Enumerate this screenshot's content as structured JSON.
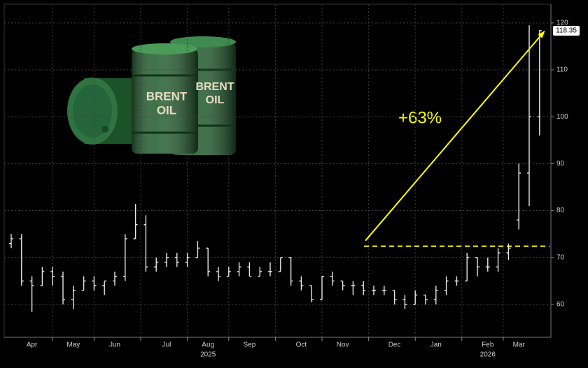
{
  "chart_data": {
    "type": "ohlc",
    "categories": [
      null,
      null,
      "Apr",
      null,
      null,
      null,
      "May",
      null,
      null,
      null,
      "Jun",
      null,
      null,
      null,
      null,
      "Jul",
      null,
      null,
      null,
      "Aug",
      null,
      null,
      null,
      "Sep",
      null,
      null,
      null,
      null,
      "Oct",
      null,
      null,
      null,
      "Nov",
      null,
      null,
      null,
      null,
      "Dec",
      null,
      null,
      null,
      "Jan",
      null,
      null,
      null,
      null,
      "Feb",
      null,
      null,
      "Mar",
      null,
      null
    ],
    "year_categories": [
      null,
      null,
      null,
      null,
      null,
      null,
      null,
      null,
      null,
      null,
      null,
      null,
      null,
      null,
      null,
      null,
      null,
      null,
      null,
      "2025",
      null,
      null,
      null,
      null,
      null,
      null,
      null,
      null,
      null,
      null,
      null,
      null,
      null,
      null,
      null,
      null,
      null,
      null,
      null,
      null,
      null,
      null,
      null,
      null,
      null,
      null,
      "2026",
      null,
      null,
      null,
      null,
      null
    ],
    "open": [
      73,
      74,
      65,
      64,
      67,
      66,
      61,
      63,
      65,
      64,
      65,
      66,
      74,
      77,
      68,
      69,
      70,
      69,
      70,
      72,
      67,
      66,
      67,
      68,
      66,
      67,
      67,
      70,
      65,
      64,
      61,
      66,
      65,
      64,
      64,
      63,
      63,
      63,
      61,
      60,
      62,
      61,
      63,
      65,
      65,
      70,
      68,
      68,
      71,
      78,
      88,
      100
    ],
    "high": [
      75,
      75,
      66,
      68,
      68,
      67,
      64,
      66,
      66,
      65,
      67,
      75,
      81.4,
      79,
      70,
      71,
      71,
      71,
      73.5,
      72,
      68,
      68,
      69,
      69,
      68,
      69,
      70,
      70,
      66,
      64,
      66,
      67,
      65,
      65,
      65,
      64,
      64,
      63,
      62,
      63,
      62,
      64,
      66,
      66,
      71,
      70,
      70,
      72,
      73,
      90,
      119.5,
      118.5
    ],
    "low": [
      72,
      64,
      58.4,
      64,
      64,
      60,
      59,
      63,
      63,
      62,
      64,
      65,
      74,
      67,
      67,
      68,
      68,
      68,
      70,
      66,
      65,
      66,
      66,
      66,
      66,
      66,
      67,
      64,
      63,
      60.5,
      61,
      64,
      63,
      62,
      62,
      62,
      62,
      60,
      59,
      60,
      60,
      60,
      62,
      64,
      65,
      66,
      67,
      67,
      69.5,
      76,
      81,
      96
    ],
    "close": [
      74,
      65,
      64,
      67,
      66,
      61,
      63,
      65,
      64,
      65,
      66,
      74,
      77,
      68,
      69,
      70,
      69,
      70,
      72,
      67,
      66,
      67,
      68,
      66,
      67,
      67,
      70,
      65,
      64,
      61,
      66,
      65,
      64,
      64,
      63,
      63,
      63,
      61,
      60,
      62,
      61,
      63,
      65,
      65,
      70,
      68,
      68,
      71,
      72,
      88,
      100,
      118.35
    ],
    "color": "#e8e8e8",
    "ylim": [
      53,
      124
    ],
    "yticks": [
      60,
      70,
      80,
      90,
      100,
      110,
      120
    ],
    "grid": true,
    "annotation": "+63%",
    "annotation_color": "#ffff00",
    "ref_level": 72.4,
    "image_labels": [
      [
        "BRENT",
        "OIL"
      ],
      [
        "BRENT",
        "OIL"
      ]
    ]
  }
}
